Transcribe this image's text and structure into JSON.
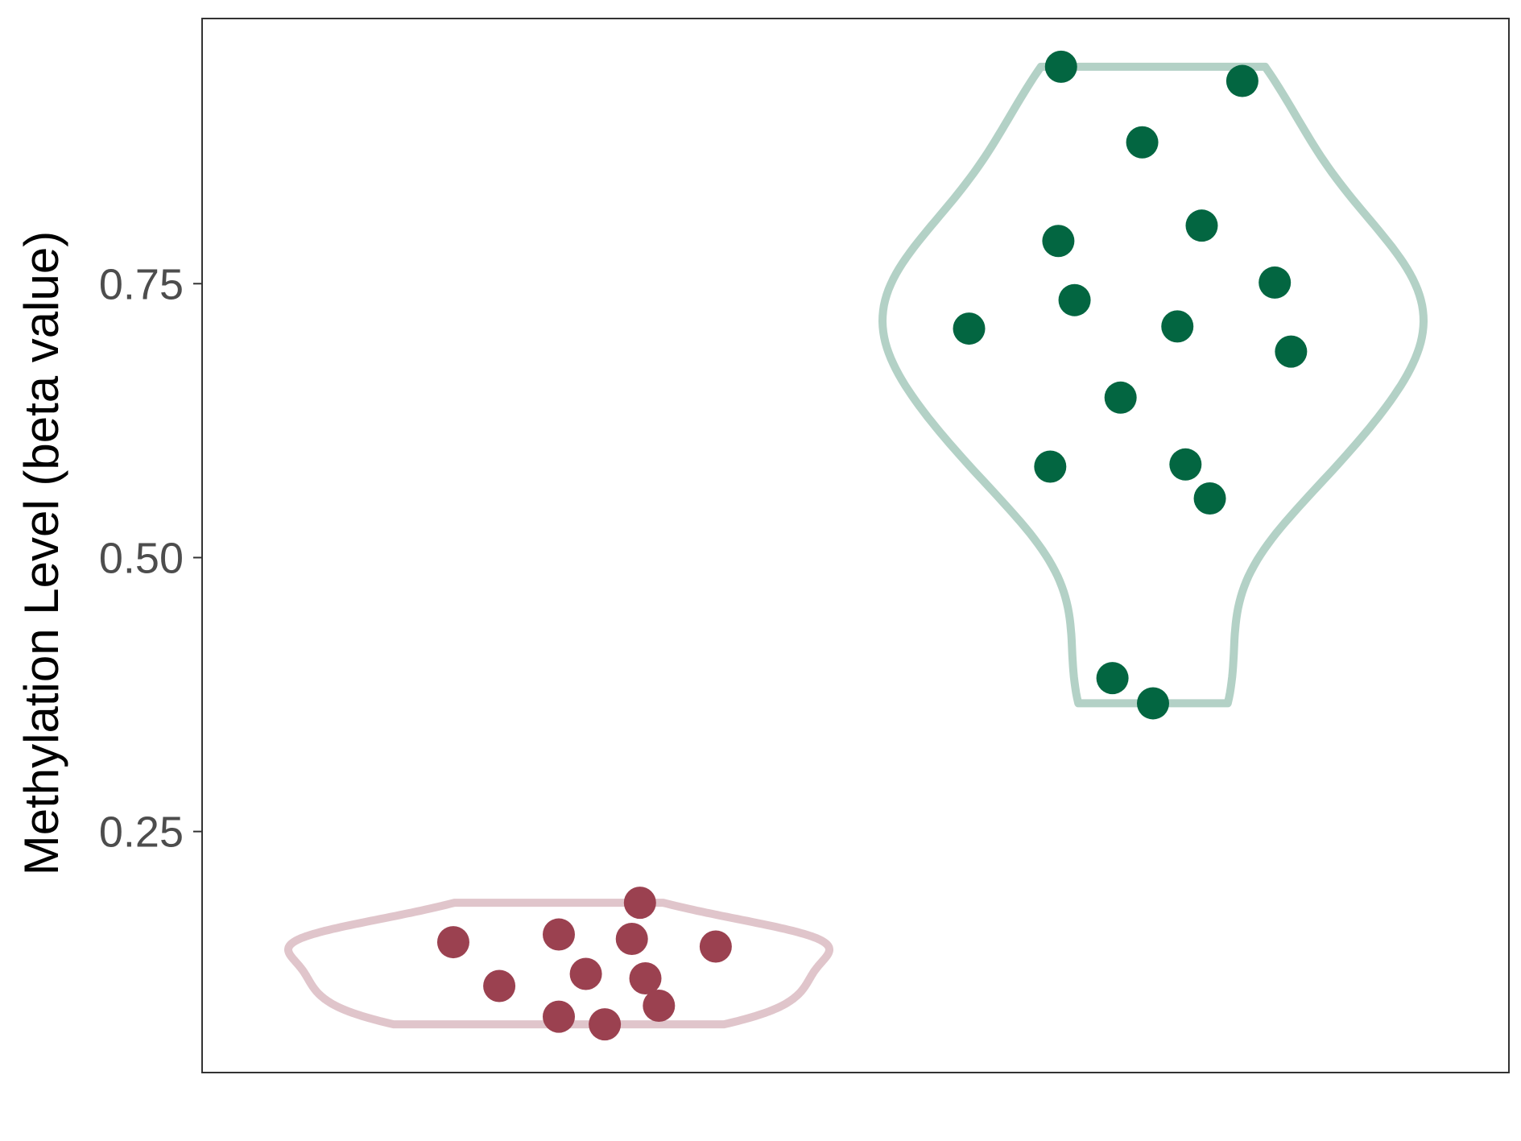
{
  "chart_data": {
    "type": "violin",
    "title": "",
    "xlabel": "",
    "ylabel": "Methylation Level (beta value)",
    "ylim": [
      0.03,
      0.992
    ],
    "yticks": [
      {
        "value": 0.25,
        "label": "0.25"
      },
      {
        "value": 0.5,
        "label": "0.50"
      },
      {
        "value": 0.75,
        "label": "0.75"
      }
    ],
    "grid": false,
    "legend": "none",
    "series": [
      {
        "color": "#9b4150",
        "outline_color": "#e0c5cb",
        "values": [
          0.149,
          0.156,
          0.185,
          0.152,
          0.145,
          0.109,
          0.12,
          0.116,
          0.091,
          0.081,
          0.074
        ],
        "jitter": [
          -0.39,
          0.0,
          0.3,
          0.27,
          0.58,
          -0.22,
          0.1,
          0.32,
          0.37,
          0.0,
          0.17
        ]
      },
      {
        "color": "#036641",
        "outline_color": "#b3d1c6",
        "values": [
          0.948,
          0.935,
          0.879,
          0.803,
          0.789,
          0.751,
          0.735,
          0.709,
          0.711,
          0.688,
          0.646,
          0.583,
          0.585,
          0.554,
          0.39,
          0.367
        ],
        "jitter": [
          -0.34,
          0.33,
          -0.04,
          0.18,
          -0.35,
          0.45,
          -0.29,
          -0.68,
          0.09,
          0.51,
          -0.12,
          -0.38,
          0.12,
          0.21,
          -0.15,
          0.0
        ]
      }
    ]
  }
}
